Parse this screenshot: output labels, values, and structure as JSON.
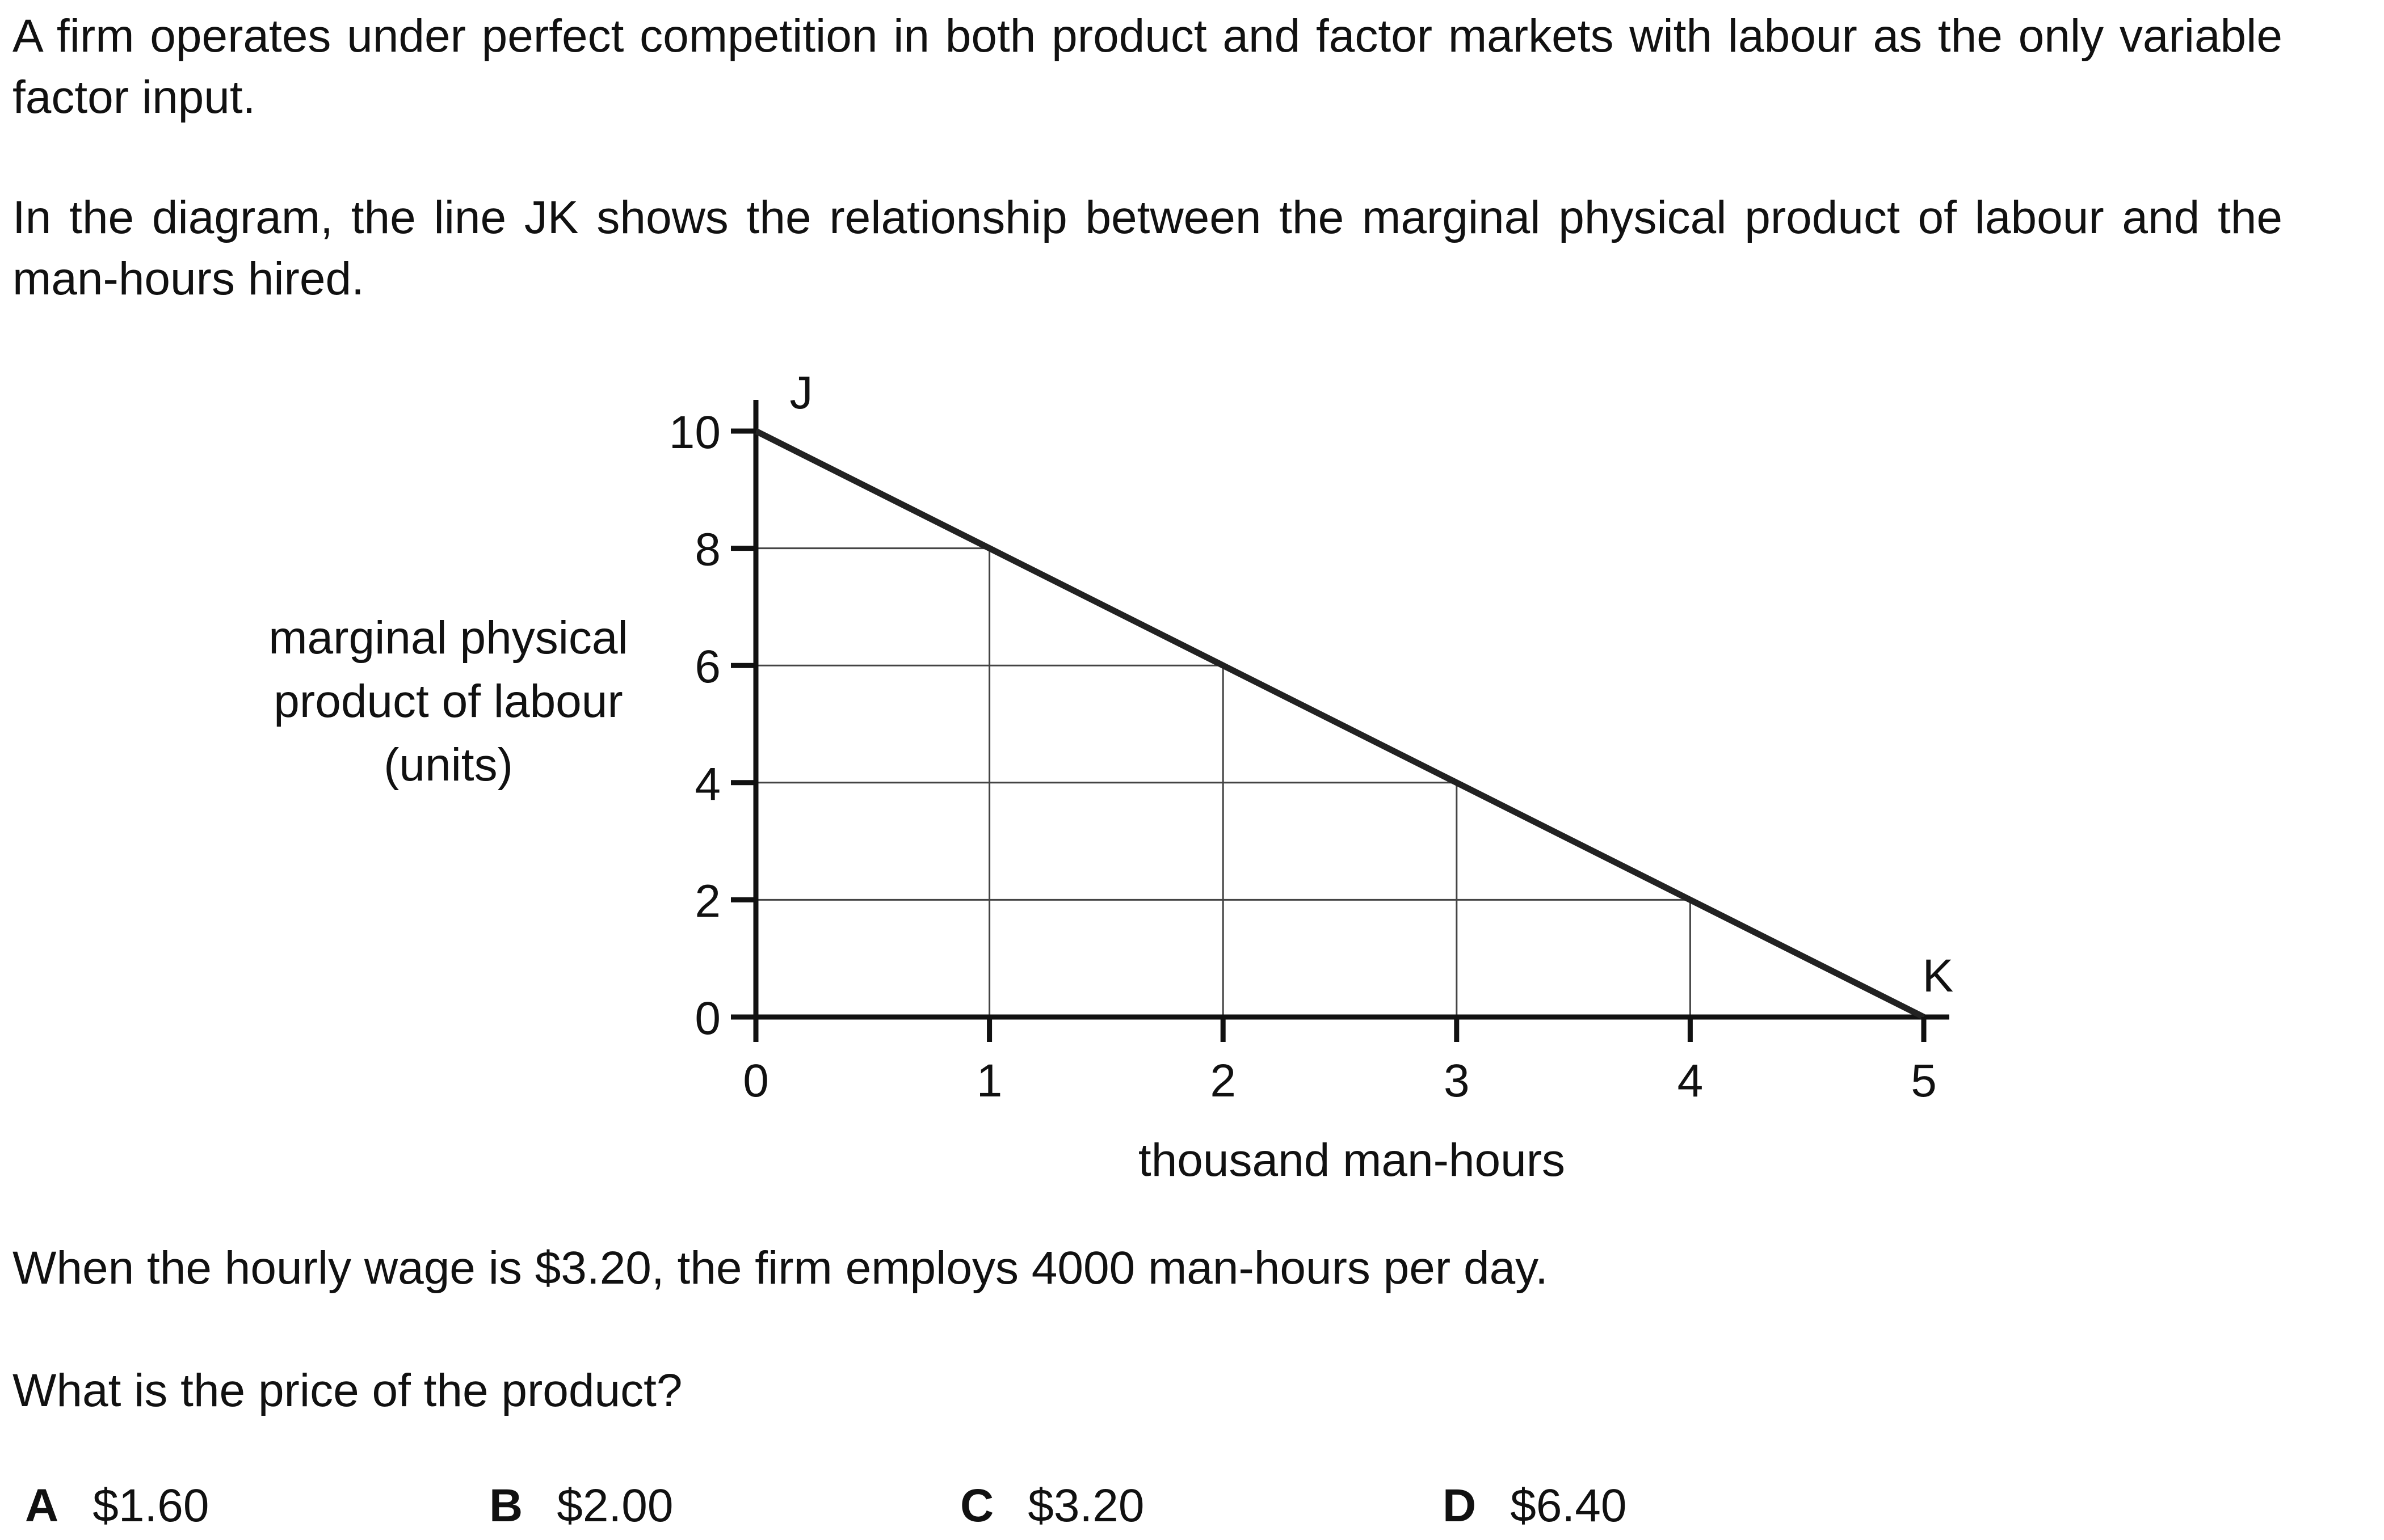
{
  "question": {
    "intro": "A firm operates under perfect competition in both product and factor markets with labour as the only variable factor input.",
    "diagram_text": "In the diagram, the line JK shows the relationship between the marginal physical product of labour and the man-hours hired.",
    "condition": "When the hourly wage is $3.20, the firm employs 4000 man-hours per day.",
    "prompt": "What is the price of the product?"
  },
  "options": [
    {
      "letter": "A",
      "value": "$1.60"
    },
    {
      "letter": "B",
      "value": "$2.00"
    },
    {
      "letter": "C",
      "value": "$3.20"
    },
    {
      "letter": "D",
      "value": "$6.40"
    }
  ],
  "chart_data": {
    "type": "line",
    "ylabel_lines": [
      "marginal physical",
      "product of labour",
      "(units)"
    ],
    "xlabel": "thousand man-hours",
    "xlim": [
      0,
      5
    ],
    "ylim": [
      0,
      10
    ],
    "x_ticks": [
      "0",
      "1",
      "2",
      "3",
      "4",
      "5"
    ],
    "y_ticks": [
      "0",
      "2",
      "4",
      "6",
      "8",
      "10"
    ],
    "series": [
      {
        "points": [
          [
            0,
            10
          ],
          [
            1,
            8
          ],
          [
            2,
            6
          ],
          [
            3,
            4
          ],
          [
            4,
            2
          ],
          [
            5,
            0
          ]
        ]
      }
    ],
    "point_labels": [
      {
        "text": "J",
        "x": 0,
        "y": 10
      },
      {
        "text": "K",
        "x": 5,
        "y": 0
      }
    ],
    "guides_at_x": [
      1,
      2,
      3,
      4
    ],
    "colors": {
      "line": "#222222",
      "guide": "#444444",
      "axis": "#111111"
    }
  }
}
